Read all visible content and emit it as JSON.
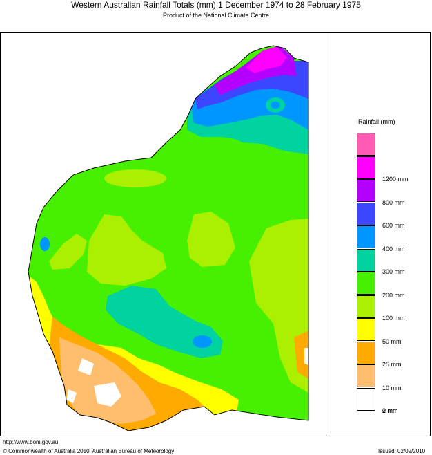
{
  "header": {
    "title": "Western Australian Rainfall Totals (mm) 1 December 1974 to 28 February 1975",
    "subtitle": "Product of the National Climate Centre"
  },
  "legend": {
    "title": "Rainfall (mm)",
    "bins": [
      {
        "color": "#ff5ab4",
        "label": ""
      },
      {
        "color": "#ff00ff",
        "label": "1200 mm"
      },
      {
        "color": "#b400ff",
        "label": "800 mm"
      },
      {
        "color": "#3c46ff",
        "label": "600 mm"
      },
      {
        "color": "#0096ff",
        "label": "400 mm"
      },
      {
        "color": "#00d2a0",
        "label": "300 mm"
      },
      {
        "color": "#46f000",
        "label": "200 mm"
      },
      {
        "color": "#aaf000",
        "label": "100 mm"
      },
      {
        "color": "#ffff00",
        "label": "50 mm"
      },
      {
        "color": "#ffaa00",
        "label": "25 mm"
      },
      {
        "color": "#ffbe6e",
        "label": "10 mm"
      },
      {
        "color": "#ffffff",
        "label": "2 mm"
      }
    ],
    "bottom_label": "0 mm"
  },
  "footer": {
    "url": "http://www.bom.gov.au",
    "copyright": "© Commonwealth of Australia 2010, Australian Bureau of Meteorology",
    "issued": "Issued: 02/02/2010"
  }
}
